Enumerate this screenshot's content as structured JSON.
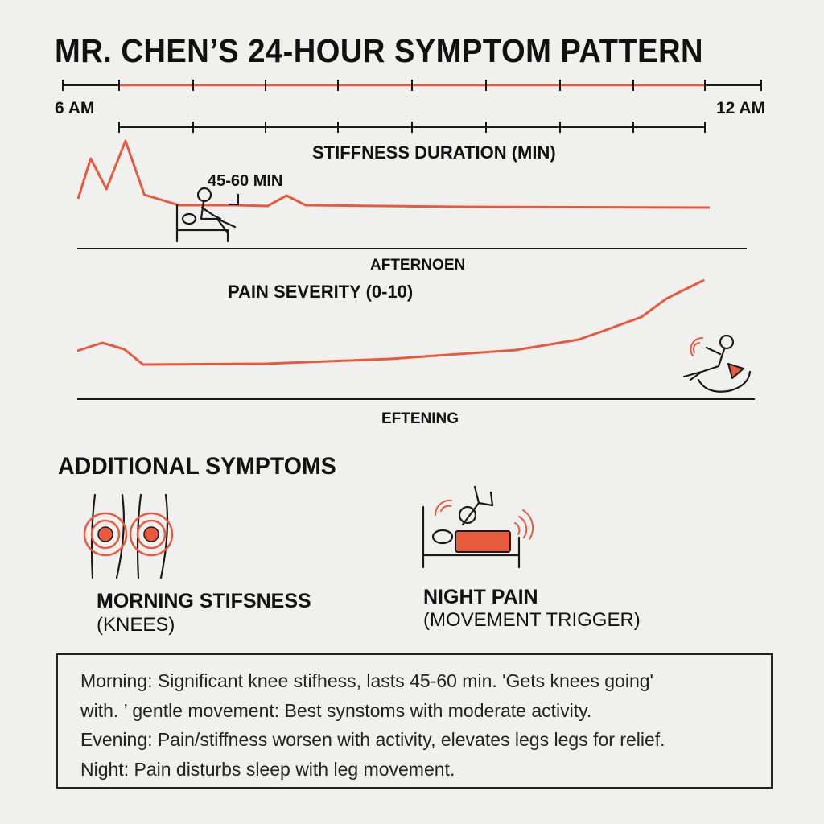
{
  "title": "MR. CHEN’S 24-HOUR SYMPTOM PATTERN",
  "timeline": {
    "start_label": "6 AM",
    "end_label": "12 AM"
  },
  "chart_data": [
    {
      "type": "line",
      "title": "STIFFNESS DURATION (MIN)",
      "annotation": "45-60 MIN",
      "xlabel": "AFTERNOEN",
      "series": [
        {
          "x": [
            0,
            0.02,
            0.045,
            0.075,
            0.105,
            0.16,
            0.25,
            0.3,
            0.33,
            0.36,
            0.6,
            1
          ],
          "values": [
            20,
            70,
            32,
            92,
            25,
            12,
            12,
            11,
            24,
            12,
            10,
            9
          ]
        }
      ],
      "color": "#e85a3c"
    },
    {
      "type": "line",
      "title": "PAIN SEVERITY (0-10)",
      "xlabel": "EFTENING",
      "series": [
        {
          "x": [
            0,
            0.04,
            0.075,
            0.105,
            0.3,
            0.5,
            0.7,
            0.8,
            0.84,
            0.9,
            0.94,
            1
          ],
          "values": [
            24,
            34,
            26,
            7,
            8,
            14,
            25,
            38,
            49,
            66,
            89,
            112
          ]
        }
      ],
      "color": "#e85a3c"
    }
  ],
  "additional": {
    "title": "ADDITIONAL SYMPTOMS",
    "items": [
      {
        "title": "MORNING STIFSNESS",
        "subtitle": "(KNEES)",
        "icon": "knees-icon"
      },
      {
        "title": "NIGHT PAIN",
        "subtitle": "(MOVEMENT TRIGGER)",
        "icon": "night-pain-bed-icon"
      }
    ]
  },
  "notes": [
    "Morning: Significant knee stifhess, lasts 45-60 min. 'Gets knees going'",
    "with. ’ gentle movement: Best synstoms with moderate activity.",
    "Evening: Pain/stiffness worsen with activity, elevates legs legs for relief.",
    "Night: Pain disturbs sleep with leg movement."
  ],
  "colors": {
    "accent": "#e85a3c",
    "ink": "#1a1a1a",
    "background": "#f0f0ef"
  }
}
